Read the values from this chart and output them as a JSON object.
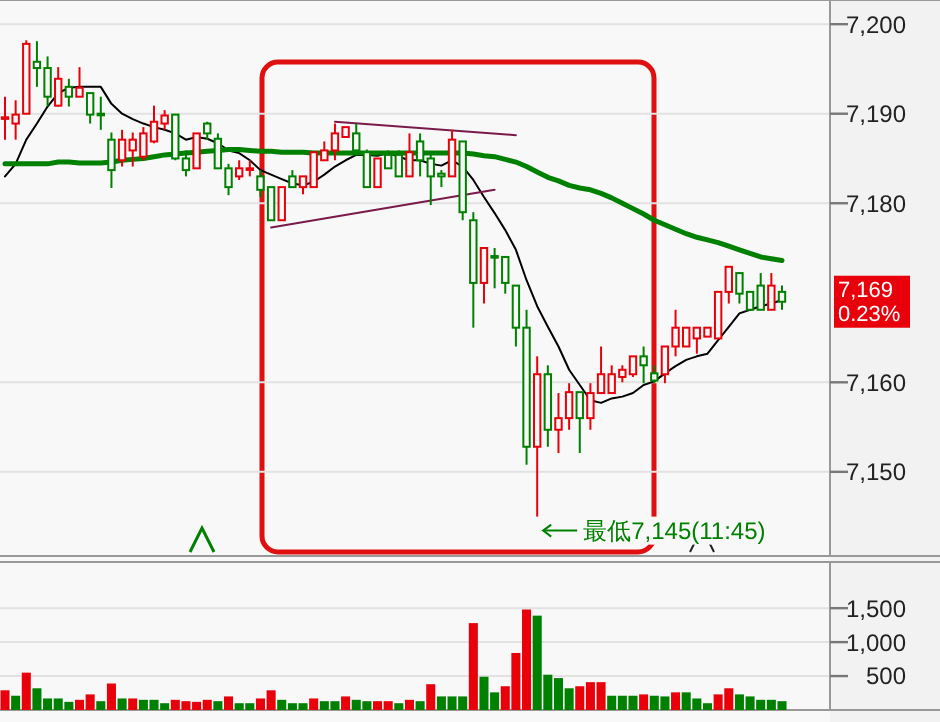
{
  "chart_data": [
    {
      "type": "candlestick",
      "categories": [
        null,
        null,
        null,
        null,
        null,
        null,
        null,
        null,
        null,
        null,
        null,
        null,
        null,
        null,
        null,
        null,
        null,
        null,
        null,
        null,
        null,
        null,
        null,
        null,
        null,
        null,
        null,
        null,
        null,
        null,
        null,
        null,
        null,
        null,
        null,
        null,
        null,
        null,
        null,
        null,
        null,
        null,
        null,
        null,
        null,
        null,
        null,
        null,
        null,
        null,
        null,
        null,
        null,
        null,
        null,
        null,
        null,
        null,
        null,
        null,
        null,
        null,
        null,
        null,
        null,
        null,
        null,
        null,
        null,
        null,
        null,
        null,
        null,
        null
      ],
      "ohlc": [
        [
          7189.5,
          7191.9,
          7187.1,
          7189.6
        ],
        [
          7188.9,
          7191.5,
          7187.1,
          7189.9
        ],
        [
          7190.0,
          7198.2,
          7190.0,
          7197.8
        ],
        [
          7195.8,
          7198.1,
          7193.0,
          7195.1
        ],
        [
          7195.1,
          7196.4,
          7190.8,
          7191.9
        ],
        [
          7190.9,
          7195.2,
          7190.8,
          7193.9
        ],
        [
          7193.0,
          7193.9,
          7190.8,
          7191.9
        ],
        [
          7191.9,
          7195.2,
          7191.9,
          7192.9
        ],
        [
          7192.3,
          7192.3,
          7188.9,
          7189.9
        ],
        [
          7190.0,
          7191.9,
          7188.2,
          7189.9
        ],
        [
          7187.1,
          7187.9,
          7181.7,
          7183.7
        ],
        [
          7184.8,
          7188.2,
          7184.1,
          7187.1
        ],
        [
          7185.9,
          7187.9,
          7184.1,
          7187.1
        ],
        [
          7185.2,
          7188.5,
          7184.8,
          7187.8
        ],
        [
          7186.9,
          7190.9,
          7186.7,
          7189.1
        ],
        [
          7188.9,
          7190.4,
          7188.2,
          7189.8
        ],
        [
          7189.9,
          7189.9,
          7184.8,
          7185.0
        ],
        [
          7185.0,
          7185.9,
          7183.0,
          7183.7
        ],
        [
          7183.9,
          7187.8,
          7183.9,
          7187.8
        ],
        [
          7188.9,
          7189.1,
          7187.1,
          7187.8
        ],
        [
          7187.2,
          7187.8,
          7183.9,
          7183.9
        ],
        [
          7183.9,
          7184.4,
          7180.9,
          7181.8
        ],
        [
          7183.0,
          7184.8,
          7182.6,
          7183.9
        ],
        [
          7183.8,
          7184.8,
          7183.0,
          7183.9
        ],
        [
          7183.0,
          7183.7,
          7180.7,
          7181.5
        ],
        [
          7181.8,
          7181.8,
          7178.1,
          7178.1
        ],
        [
          7178.1,
          7181.8,
          7178.1,
          7181.8
        ],
        [
          7183.0,
          7183.7,
          7181.8,
          7181.8
        ],
        [
          7181.8,
          7183.0,
          7181.0,
          7183.0
        ],
        [
          7181.8,
          7185.7,
          7181.8,
          7185.7
        ],
        [
          7184.8,
          7186.9,
          7184.8,
          7185.9
        ],
        [
          7185.9,
          7188.9,
          7184.8,
          7187.8
        ],
        [
          7187.4,
          7188.5,
          7187.4,
          7188.5
        ],
        [
          7187.8,
          7188.9,
          7185.6,
          7185.9
        ],
        [
          7185.7,
          7186.0,
          7181.8,
          7181.8
        ],
        [
          7181.8,
          7185.0,
          7181.8,
          7185.0
        ],
        [
          7185.4,
          7185.9,
          7183.9,
          7183.9
        ],
        [
          7185.4,
          7185.9,
          7183.0,
          7183.0
        ],
        [
          7183.0,
          7187.8,
          7183.0,
          7185.7
        ],
        [
          7186.9,
          7187.8,
          7183.0,
          7184.8
        ],
        [
          7185.0,
          7185.7,
          7179.8,
          7183.0
        ],
        [
          7183.3,
          7183.7,
          7181.8,
          7183.0
        ],
        [
          7183.0,
          7188.2,
          7183.0,
          7187.1
        ],
        [
          7186.9,
          7186.9,
          7178.1,
          7179.0
        ],
        [
          7178.1,
          7179.0,
          7166.1,
          7171.1
        ],
        [
          7171.1,
          7175.0,
          7168.8,
          7175.0
        ],
        [
          7174.1,
          7175.0,
          7170.5,
          7174.0
        ],
        [
          7174.0,
          7174.0,
          7169.9,
          7171.1
        ],
        [
          7170.8,
          7170.8,
          7164.0,
          7166.1
        ],
        [
          7166.1,
          7168.1,
          7150.8,
          7152.8
        ],
        [
          7152.8,
          7162.9,
          7145,
          7160.9
        ],
        [
          7160.9,
          7161.9,
          7152.8,
          7154.7
        ],
        [
          7154.7,
          7158.8,
          7152.1,
          7156.0
        ],
        [
          7156.0,
          7159.9,
          7154.7,
          7158.9
        ],
        [
          7158.9,
          7158.9,
          7152.1,
          7156.0
        ],
        [
          7156.0,
          7159.9,
          7154.7,
          7158.8
        ],
        [
          7158.8,
          7164.0,
          7158.8,
          7160.9
        ],
        [
          7158.8,
          7161.9,
          7158.8,
          7160.9
        ],
        [
          7160.6,
          7161.9,
          7160.0,
          7161.4
        ],
        [
          7160.9,
          7162.9,
          7160.6,
          7162.9
        ],
        [
          7162.9,
          7164.0,
          7159.9,
          7161.9
        ],
        [
          7161.0,
          7161.9,
          7159.9,
          7160.2
        ],
        [
          7160.9,
          7164.0,
          7159.9,
          7164.0
        ],
        [
          7164.0,
          7168.1,
          7162.9,
          7166.1
        ],
        [
          7164.0,
          7166.1,
          7164.0,
          7166.1
        ],
        [
          7164.9,
          7166.1,
          7163.2,
          7166.1
        ],
        [
          7165.1,
          7166.1,
          7165.1,
          7166.1
        ],
        [
          7164.9,
          7170.1,
          7164.9,
          7170.1
        ],
        [
          7170.1,
          7172.9,
          7168.8,
          7172.9
        ],
        [
          7172.2,
          7172.2,
          7168.8,
          7169.9
        ],
        [
          7170.1,
          7170.1,
          7168.1,
          7168.1
        ],
        [
          7170.8,
          7172.2,
          7168.1,
          7168.1
        ],
        [
          7168.1,
          7172.2,
          7168.1,
          7170.8
        ],
        [
          7170.1,
          7170.8,
          7168.1,
          7169.0
        ]
      ],
      "colors": [
        "#e8000b",
        "#e8000b",
        "#e8000b",
        "#008000",
        "#008000",
        "#e8000b",
        "#008000",
        "#e8000b",
        "#008000",
        "#008000",
        "#008000",
        "#e8000b",
        "#e8000b",
        "#e8000b",
        "#e8000b",
        "#e8000b",
        "#008000",
        "#008000",
        "#e8000b",
        "#008000",
        "#008000",
        "#008000",
        "#e8000b",
        "#e8000b",
        "#008000",
        "#008000",
        "#e8000b",
        "#008000",
        "#e8000b",
        "#e8000b",
        "#e8000b",
        "#e8000b",
        "#e8000b",
        "#008000",
        "#008000",
        "#e8000b",
        "#008000",
        "#008000",
        "#e8000b",
        "#008000",
        "#008000",
        "#008000",
        "#e8000b",
        "#008000",
        "#008000",
        "#e8000b",
        "#008000",
        "#008000",
        "#008000",
        "#008000",
        "#e8000b",
        "#008000",
        "#e8000b",
        "#e8000b",
        "#008000",
        "#e8000b",
        "#e8000b",
        "#e8000b",
        "#e8000b",
        "#e8000b",
        "#008000",
        "#008000",
        "#e8000b",
        "#e8000b",
        "#e8000b",
        "#e8000b",
        "#e8000b",
        "#e8000b",
        "#e8000b",
        "#008000",
        "#008000",
        "#008000",
        "#e8000b",
        "#008000"
      ],
      "series": [
        {
          "type": "line",
          "color": "#000000",
          "values": [
            7183.0,
            7184.4,
            7187.1,
            7188.9,
            7190.8,
            7192.3,
            7192.9,
            7193.0,
            7193.0,
            7193.0,
            7191.1,
            7190.0,
            7189.4,
            7188.9,
            7188.5,
            7188.2,
            7187.8,
            7187.1,
            7187.4,
            7187.2,
            7186.7,
            7185.9,
            7185.6,
            7184.8,
            7183.7,
            7183.2,
            7182.7,
            7182.2,
            7182.0,
            7182.4,
            7183.2,
            7184.1,
            7184.8,
            7185.4,
            7185.4,
            7185.3,
            7185.6,
            7185.2,
            7184.8,
            7184.8,
            7184.4,
            7184.2,
            7184.8,
            7184.1,
            7182.6,
            7180.7,
            7178.9,
            7177.0,
            7174.8,
            7171.4,
            7168.5,
            7166.2,
            7164.0,
            7161.4,
            7159.7,
            7158.0,
            7157.7,
            7158.2,
            7158.4,
            7158.8,
            7159.7,
            7160.1,
            7161.0,
            7161.8,
            7162.5,
            7162.9,
            7163.2,
            7164.7,
            7166.2,
            7167.7,
            7168.1,
            7168.5,
            7168.8,
            7169.2
          ]
        },
        {
          "type": "line",
          "color": "#008000",
          "values": [
            7184.4,
            7184.4,
            7184.4,
            7184.4,
            7184.4,
            7184.6,
            7184.6,
            7184.5,
            7184.5,
            7184.5,
            7184.6,
            7184.8,
            7184.9,
            7185.0,
            7185.2,
            7185.4,
            7185.5,
            7185.6,
            7185.7,
            7185.8,
            7185.9,
            7186.0,
            7186.0,
            7185.9,
            7185.8,
            7185.8,
            7185.7,
            7185.7,
            7185.7,
            7185.6,
            7185.6,
            7185.6,
            7185.6,
            7185.6,
            7185.6,
            7185.6,
            7185.6,
            7185.6,
            7185.6,
            7185.6,
            7185.6,
            7185.6,
            7185.6,
            7185.6,
            7185.5,
            7185.3,
            7185.2,
            7184.9,
            7184.6,
            7184.1,
            7183.5,
            7182.9,
            7182.5,
            7182.0,
            7181.7,
            7181.5,
            7181.1,
            7180.6,
            7180.0,
            7179.4,
            7178.8,
            7178.1,
            7177.6,
            7177.1,
            7176.6,
            7176.2,
            7175.9,
            7175.6,
            7175.2,
            7174.8,
            7174.4,
            7174.0,
            7173.8,
            7173.6
          ]
        },
        {
          "type": "line",
          "color": "#7a1a4a",
          "values": [
            null,
            null,
            null,
            null,
            null,
            null,
            null,
            null,
            null,
            null,
            null,
            null,
            null,
            null,
            null,
            null,
            null,
            null,
            null,
            null,
            null,
            null,
            null,
            null,
            null,
            null,
            null,
            null,
            null,
            null,
            null,
            7189.1,
            null,
            null,
            null,
            null,
            null,
            null,
            null,
            null,
            null,
            null,
            null,
            null,
            null,
            null,
            null,
            null,
            7187.6,
            null,
            null,
            null,
            null,
            null,
            null,
            null,
            null,
            null,
            null,
            null,
            null,
            null,
            null,
            null,
            null,
            null,
            null,
            null,
            null,
            null,
            null,
            null,
            null,
            null
          ]
        },
        {
          "type": "line",
          "color": "#7a1a4a",
          "values": [
            null,
            null,
            null,
            null,
            null,
            null,
            null,
            null,
            null,
            null,
            null,
            null,
            null,
            null,
            null,
            null,
            null,
            null,
            null,
            null,
            null,
            null,
            null,
            null,
            null,
            7177.3,
            null,
            null,
            null,
            null,
            null,
            null,
            null,
            null,
            null,
            null,
            null,
            null,
            null,
            null,
            null,
            null,
            null,
            null,
            null,
            null,
            7181.5,
            null,
            null,
            null,
            null,
            null,
            null,
            null,
            null,
            null,
            null,
            null,
            null,
            null,
            null,
            null,
            null,
            null,
            null,
            null,
            null,
            null,
            null,
            null,
            null,
            null,
            null,
            null
          ]
        }
      ],
      "ylim": [
        7140.6,
        7202.7
      ],
      "yticks": [
        {
          "value": 7150,
          "label": "7,150"
        },
        {
          "value": 7160,
          "label": "7,160"
        },
        {
          "value": 7180,
          "label": "7,180"
        },
        {
          "value": 7190,
          "label": "7,190"
        },
        {
          "value": 7200,
          "label": "7,200"
        }
      ],
      "grid": "y",
      "tick_labels": "y",
      "annotations": [
        "最低7,145(11:45)",
        "7,169",
        "0.23%"
      ]
    },
    {
      "type": "bar",
      "categories": [
        null,
        null,
        null,
        null,
        null,
        null,
        null,
        null,
        null,
        null,
        null,
        null,
        null,
        null,
        null,
        null,
        null,
        null,
        null,
        null,
        null,
        null,
        null,
        null,
        null,
        null,
        null,
        null,
        null,
        null,
        null,
        null,
        null,
        null,
        null,
        null,
        null,
        null,
        null,
        null,
        null,
        null,
        null,
        null,
        null,
        null,
        null,
        null,
        null,
        null,
        null,
        null,
        null,
        null,
        null,
        null,
        null,
        null,
        null,
        null,
        null,
        null,
        null,
        null,
        null,
        null,
        null,
        null,
        null,
        null,
        null,
        null,
        null,
        null
      ],
      "values": [
        290,
        210,
        550,
        320,
        170,
        170,
        120,
        150,
        230,
        130,
        390,
        170,
        170,
        150,
        150,
        100,
        150,
        130,
        120,
        150,
        130,
        200,
        100,
        100,
        170,
        290,
        150,
        100,
        100,
        170,
        130,
        130,
        200,
        150,
        130,
        130,
        130,
        100,
        150,
        130,
        380,
        200,
        200,
        200,
        1280,
        490,
        260,
        350,
        840,
        1480,
        1390,
        520,
        470,
        320,
        350,
        410,
        410,
        210,
        210,
        210,
        230,
        210,
        200,
        260,
        260,
        170,
        100,
        230,
        320,
        230,
        200,
        150,
        150,
        130
      ],
      "colors": [
        "#e8000b",
        "#008000",
        "#e8000b",
        "#008000",
        "#008000",
        "#008000",
        "#008000",
        "#e8000b",
        "#e8000b",
        "#008000",
        "#e8000b",
        "#008000",
        "#e8000b",
        "#008000",
        "#008000",
        "#008000",
        "#e8000b",
        "#e8000b",
        "#e8000b",
        "#e8000b",
        "#008000",
        "#e8000b",
        "#008000",
        "#008000",
        "#e8000b",
        "#e8000b",
        "#008000",
        "#008000",
        "#008000",
        "#e8000b",
        "#008000",
        "#008000",
        "#e8000b",
        "#008000",
        "#008000",
        "#e8000b",
        "#e8000b",
        "#008000",
        "#e8000b",
        "#008000",
        "#e8000b",
        "#008000",
        "#008000",
        "#008000",
        "#e8000b",
        "#008000",
        "#008000",
        "#e8000b",
        "#e8000b",
        "#e8000b",
        "#008000",
        "#008000",
        "#008000",
        "#008000",
        "#e8000b",
        "#e8000b",
        "#e8000b",
        "#008000",
        "#008000",
        "#008000",
        "#e8000b",
        "#008000",
        "#008000",
        "#e8000b",
        "#008000",
        "#008000",
        "#008000",
        "#e8000b",
        "#e8000b",
        "#008000",
        "#008000",
        "#008000",
        "#008000",
        "#008000"
      ],
      "ylim": [
        0,
        2180
      ],
      "yticks": [
        500,
        {
          "value": 1000,
          "label": "1,000"
        },
        {
          "value": 1500,
          "label": "1,500"
        }
      ],
      "grid": "y",
      "tick_labels": "y"
    }
  ]
}
